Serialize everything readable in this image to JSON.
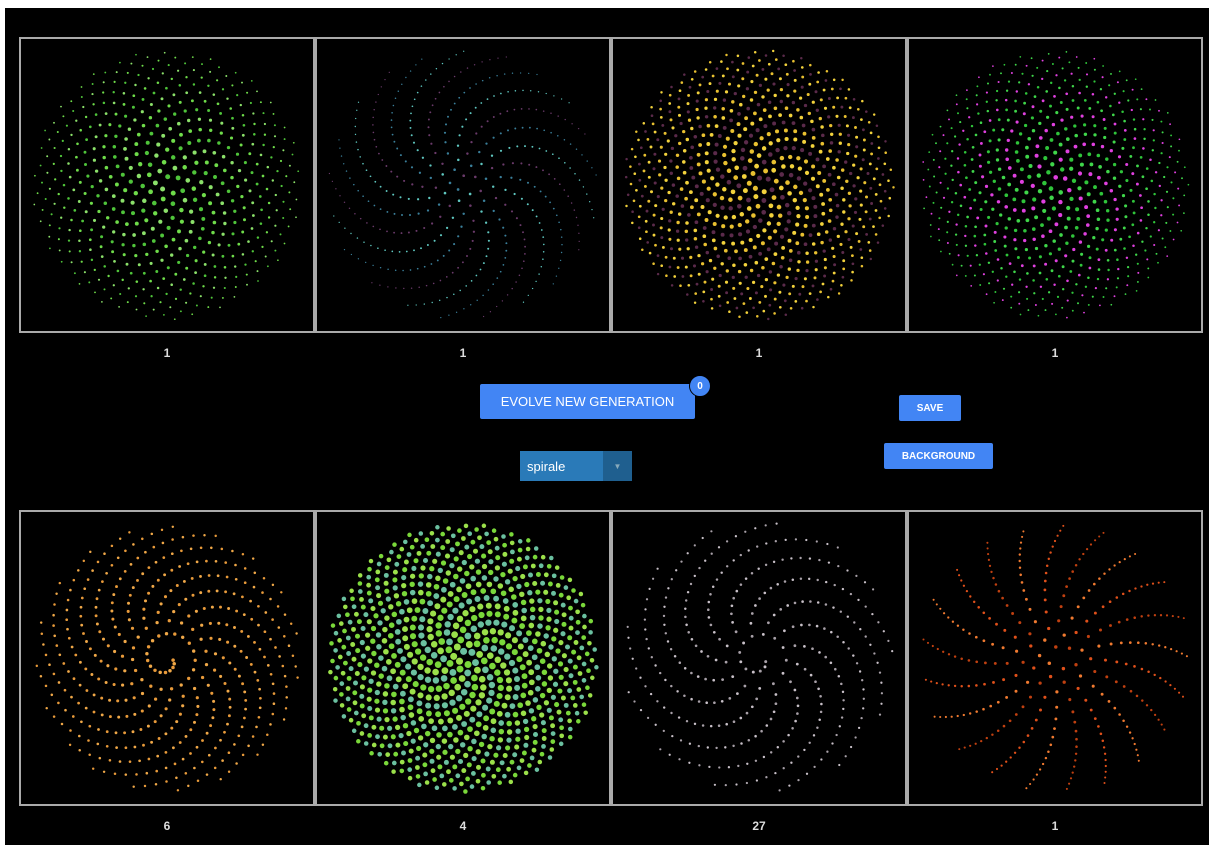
{
  "panels": {
    "top": [
      {
        "score": 1
      },
      {
        "score": 1
      },
      {
        "score": 1
      },
      {
        "score": 1
      }
    ],
    "bottom": [
      {
        "score": 6
      },
      {
        "score": 4
      },
      {
        "score": 27
      },
      {
        "score": 1
      }
    ]
  },
  "controls": {
    "evolve_button": "EVOLVE NEW GENERATION",
    "generation_badge": 0,
    "save_button": "SAVE",
    "background_button": "BACKGROUND",
    "shape_select": "spirale"
  }
}
